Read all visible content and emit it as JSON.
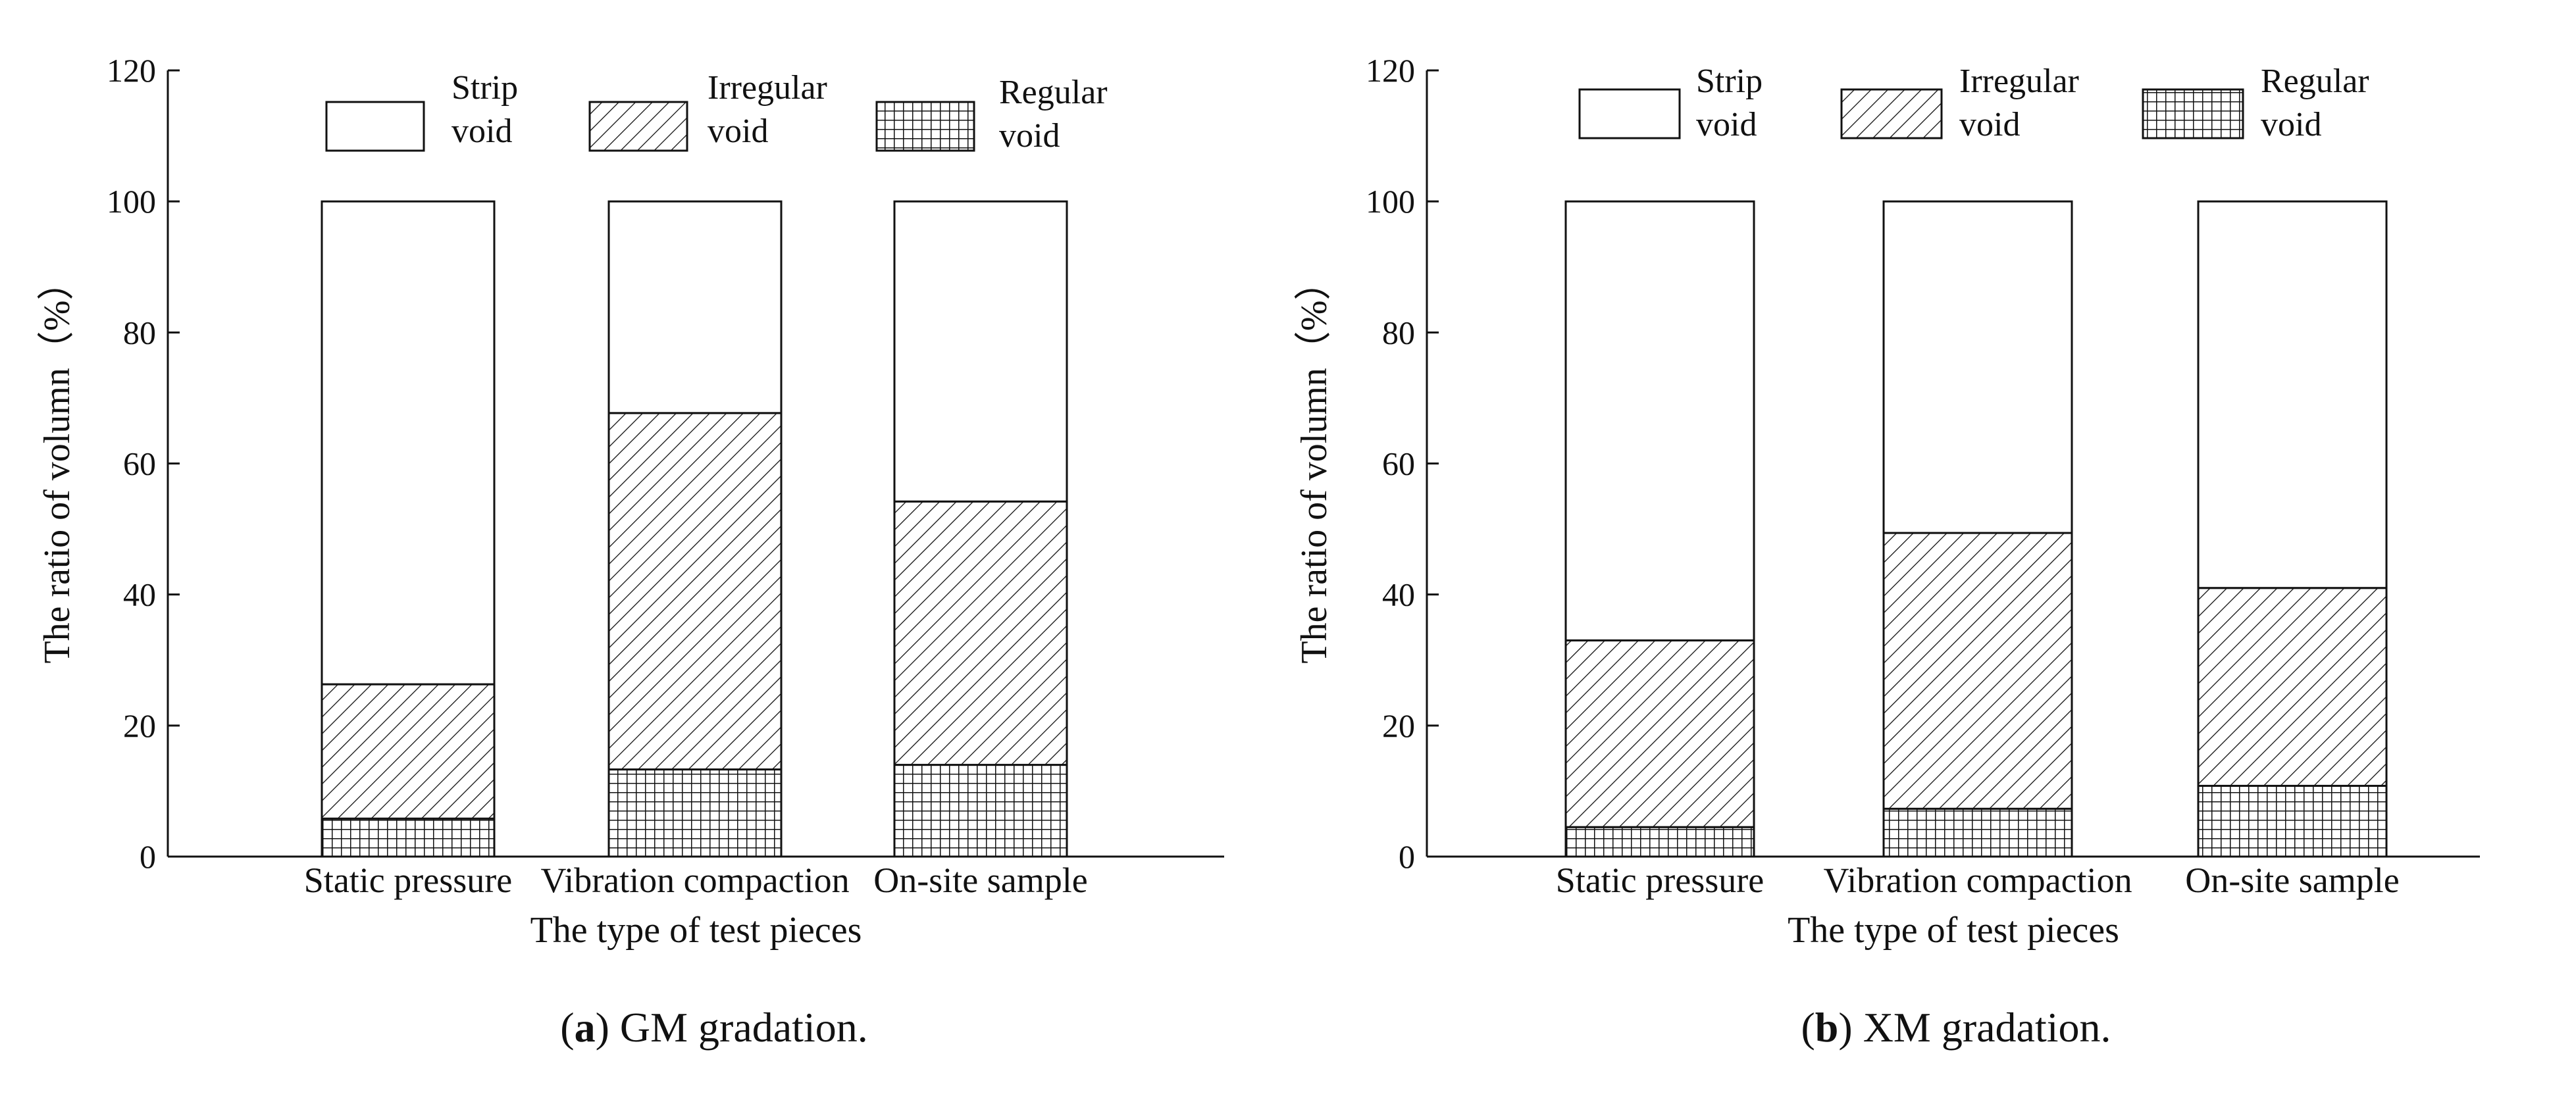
{
  "chart_data": [
    {
      "type": "bar",
      "stacked": true,
      "caption": {
        "letter": "a",
        "text": "GM gradation."
      },
      "xlabel": "The type of test pieces",
      "ylabel": "The ratio of volumn（%）",
      "ylim": [
        0,
        120
      ],
      "yticks": [
        0,
        20,
        40,
        60,
        80,
        100,
        120
      ],
      "categories": [
        "Static pressure",
        "Vibration compaction",
        "On-site sample"
      ],
      "series": [
        {
          "name": "Regular void",
          "legend_lines": [
            "Regular",
            "void"
          ],
          "pattern": "grid",
          "values": [
            5.8,
            13.3,
            14
          ]
        },
        {
          "name": "Irregular void",
          "legend_lines": [
            "Irregular",
            "void"
          ],
          "pattern": "hatch",
          "values": [
            20.5,
            54.4,
            40.2
          ]
        },
        {
          "name": "Strip void",
          "legend_lines": [
            "Strip",
            "void"
          ],
          "pattern": "none",
          "values": [
            73.7,
            32.3,
            45.8
          ]
        }
      ],
      "grid": false,
      "legend_position": "top"
    },
    {
      "type": "bar",
      "stacked": true,
      "caption": {
        "letter": "b",
        "text": "XM gradation."
      },
      "xlabel": "The type of test pieces",
      "ylabel": "The ratio of volumn（%）",
      "ylim": [
        0,
        120
      ],
      "yticks": [
        0,
        20,
        40,
        60,
        80,
        100,
        120
      ],
      "categories": [
        "Static pressure",
        "Vibration compaction",
        "On-site sample"
      ],
      "series": [
        {
          "name": "Regular void",
          "legend_lines": [
            "Regular",
            "void"
          ],
          "pattern": "grid",
          "values": [
            4.5,
            7.3,
            10.8
          ]
        },
        {
          "name": "Irregular void",
          "legend_lines": [
            "Irregular",
            "void"
          ],
          "pattern": "hatch",
          "values": [
            28.5,
            42.1,
            30.2
          ]
        },
        {
          "name": "Strip void",
          "legend_lines": [
            "Strip",
            "void"
          ],
          "pattern": "none",
          "values": [
            67,
            50.6,
            59
          ]
        }
      ],
      "grid": false,
      "legend_position": "top"
    }
  ],
  "colors": {
    "ink": "#111111",
    "fill": "#ffffff"
  }
}
